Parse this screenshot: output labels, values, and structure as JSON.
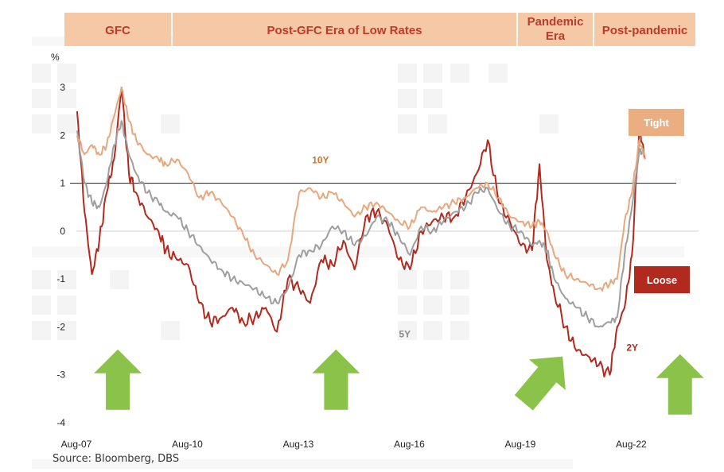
{
  "chart_data": {
    "type": "line",
    "ylabel": "%",
    "ylim": [
      -4,
      3
    ],
    "yticks": [
      "3",
      "2",
      "1",
      "0",
      "-1",
      "-2",
      "-3",
      "-4"
    ],
    "xlim": [
      2007.58,
      2024.4
    ],
    "xticks": [
      {
        "label": "Aug-07",
        "x": 2007.58
      },
      {
        "label": "Aug-10",
        "x": 2010.58
      },
      {
        "label": "Aug-13",
        "x": 2013.58
      },
      {
        "label": "Aug-16",
        "x": 2016.58
      },
      {
        "label": "Aug-19",
        "x": 2019.58
      },
      {
        "label": "Aug-22",
        "x": 2022.58
      }
    ],
    "eras": [
      {
        "label": "GFC",
        "start": 2007.4,
        "end": 2010.5
      },
      {
        "label": "Post-GFC Era of Low Rates",
        "start": 2010.5,
        "end": 2020.3
      },
      {
        "label": "Pandemic Era",
        "start": 2020.3,
        "end": 2022.25
      },
      {
        "label": "Post-pandemic",
        "start": 2022.25,
        "end": 2024.4
      }
    ],
    "reference_line": {
      "y": 1
    },
    "series": [
      {
        "name": "10Y",
        "color": "#e8a77c",
        "x": [
          2007.6,
          2007.8,
          2008.0,
          2008.2,
          2008.4,
          2008.6,
          2008.8,
          2009.0,
          2009.2,
          2009.5,
          2009.8,
          2010.0,
          2010.3,
          2010.6,
          2010.9,
          2011.2,
          2011.5,
          2011.8,
          2012.1,
          2012.4,
          2012.7,
          2013.0,
          2013.3,
          2013.6,
          2013.9,
          2014.2,
          2014.5,
          2014.8,
          2015.1,
          2015.4,
          2015.7,
          2016.0,
          2016.3,
          2016.6,
          2016.9,
          2017.2,
          2017.5,
          2017.8,
          2018.1,
          2018.4,
          2018.7,
          2019.0,
          2019.3,
          2019.6,
          2019.9,
          2020.1,
          2020.3,
          2020.5,
          2020.8,
          2021.1,
          2021.4,
          2021.7,
          2022.0,
          2022.2,
          2022.4,
          2022.6,
          2022.8,
          2022.95
        ],
        "values": [
          2.0,
          1.6,
          1.8,
          1.6,
          1.8,
          2.4,
          3.0,
          2.3,
          1.9,
          1.6,
          1.5,
          1.4,
          1.5,
          1.2,
          0.7,
          0.8,
          0.6,
          0.3,
          -0.1,
          -0.5,
          -0.7,
          -0.9,
          -0.6,
          0.8,
          0.9,
          0.7,
          0.8,
          0.6,
          0.3,
          0.5,
          0.6,
          0.4,
          0.2,
          0.1,
          0.5,
          0.4,
          0.5,
          0.6,
          0.7,
          0.9,
          1.0,
          0.7,
          0.3,
          0.2,
          0.1,
          0.2,
          0.0,
          -0.5,
          -0.9,
          -1.0,
          -1.1,
          -1.2,
          -1.1,
          -1.0,
          0.2,
          0.8,
          1.9,
          1.5
        ]
      },
      {
        "name": "5Y",
        "color": "#9e9e9e",
        "x": [
          2007.6,
          2007.8,
          2008.0,
          2008.2,
          2008.4,
          2008.6,
          2008.8,
          2009.0,
          2009.2,
          2009.5,
          2009.8,
          2010.0,
          2010.3,
          2010.6,
          2010.9,
          2011.2,
          2011.5,
          2011.8,
          2012.1,
          2012.4,
          2012.7,
          2013.0,
          2013.3,
          2013.6,
          2013.9,
          2014.2,
          2014.5,
          2014.8,
          2015.1,
          2015.4,
          2015.7,
          2016.0,
          2016.3,
          2016.6,
          2016.9,
          2017.2,
          2017.5,
          2017.8,
          2018.1,
          2018.4,
          2018.7,
          2019.0,
          2019.3,
          2019.6,
          2019.9,
          2020.1,
          2020.3,
          2020.5,
          2020.8,
          2021.1,
          2021.4,
          2021.7,
          2022.0,
          2022.2,
          2022.4,
          2022.6,
          2022.8,
          2022.95
        ],
        "values": [
          2.1,
          1.0,
          0.6,
          0.5,
          1.0,
          1.8,
          2.3,
          1.6,
          1.2,
          0.8,
          0.6,
          0.4,
          0.3,
          0.0,
          -0.3,
          -0.6,
          -0.8,
          -1.0,
          -1.1,
          -1.2,
          -1.4,
          -1.5,
          -1.2,
          -0.5,
          -0.4,
          -0.3,
          0.1,
          0.0,
          -0.3,
          -0.1,
          0.3,
          0.2,
          -0.1,
          -0.5,
          0.1,
          0.0,
          0.2,
          0.4,
          0.5,
          0.8,
          0.9,
          0.4,
          0.1,
          0.0,
          -0.3,
          -0.2,
          -0.4,
          -1.0,
          -1.4,
          -1.6,
          -1.8,
          -2.0,
          -1.9,
          -1.8,
          -0.5,
          0.5,
          1.7,
          1.6
        ]
      },
      {
        "name": "2Y",
        "color": "#b22a1e",
        "x": [
          2007.6,
          2007.8,
          2008.0,
          2008.2,
          2008.4,
          2008.6,
          2008.8,
          2009.0,
          2009.2,
          2009.5,
          2009.8,
          2010.0,
          2010.3,
          2010.6,
          2010.9,
          2011.2,
          2011.5,
          2011.8,
          2012.1,
          2012.4,
          2012.7,
          2013.0,
          2013.3,
          2013.6,
          2013.9,
          2014.2,
          2014.5,
          2014.8,
          2015.1,
          2015.4,
          2015.7,
          2016.0,
          2016.3,
          2016.6,
          2016.9,
          2017.2,
          2017.5,
          2017.8,
          2018.1,
          2018.4,
          2018.7,
          2019.0,
          2019.3,
          2019.6,
          2019.9,
          2020.1,
          2020.3,
          2020.5,
          2020.8,
          2021.1,
          2021.4,
          2021.7,
          2022.0,
          2022.2,
          2022.4,
          2022.6,
          2022.8,
          2022.95
        ],
        "values": [
          2.5,
          0.4,
          -0.9,
          -0.2,
          0.8,
          1.5,
          3.0,
          1.2,
          0.8,
          0.3,
          0.0,
          -0.4,
          -0.6,
          -0.7,
          -1.5,
          -1.9,
          -1.8,
          -1.6,
          -1.9,
          -1.8,
          -1.6,
          -2.1,
          -1.0,
          -1.2,
          -1.5,
          -0.6,
          -0.7,
          -0.2,
          -0.8,
          0.3,
          0.4,
          0.1,
          -0.6,
          -0.8,
          0.0,
          0.2,
          0.3,
          0.3,
          0.7,
          1.2,
          1.9,
          0.6,
          0.2,
          -0.3,
          -0.4,
          1.4,
          -0.6,
          -1.3,
          -2.0,
          -2.5,
          -2.6,
          -2.8,
          -3.0,
          -2.0,
          -1.6,
          -0.5,
          2.2,
          1.5
        ]
      }
    ],
    "series_labels": [
      {
        "text": "10Y",
        "x": 2013.95,
        "y": 1.42,
        "color": "#c8772d"
      },
      {
        "text": "5Y",
        "x": 2016.3,
        "y": -2.22,
        "color": "#8a8a8a"
      },
      {
        "text": "2Y",
        "x": 2022.45,
        "y": -2.5,
        "color": "#b22a1e"
      }
    ],
    "badges": [
      {
        "text": "Tight",
        "color": "#eaae80"
      },
      {
        "text": "Loose",
        "color": "#b22a1e"
      }
    ],
    "arrows": [
      {
        "name": "gfc-up-arrow",
        "x": 2008.7,
        "y": -3.1,
        "rotation": 0
      },
      {
        "name": "post-gfc-up-arrow",
        "x": 2014.6,
        "y": -3.1,
        "rotation": 0
      },
      {
        "name": "pandemic-up-arrow",
        "x": 2020.2,
        "y": -3.1,
        "rotation": 40
      },
      {
        "name": "post-pandemic-up-arrow",
        "x": 2023.9,
        "y": -3.2,
        "rotation": 0
      }
    ]
  },
  "footer": {
    "source": "Source: Bloomberg, DBS"
  }
}
